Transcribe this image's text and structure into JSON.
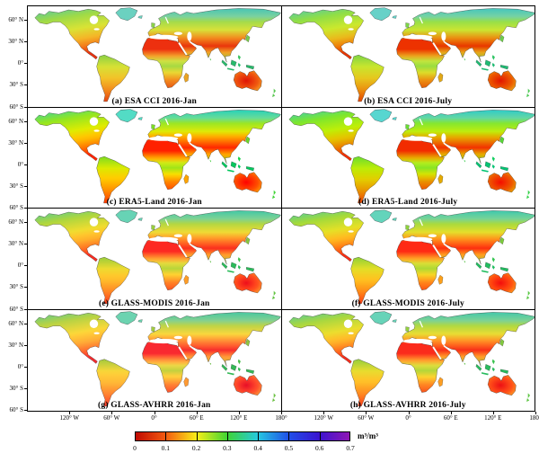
{
  "figure": {
    "panels": [
      {
        "id": "a",
        "label": "(a) ESA CCI 2016-Jan"
      },
      {
        "id": "b",
        "label": "(b) ESA CCI 2016-July"
      },
      {
        "id": "c",
        "label": "(c) ERA5-Land 2016-Jan"
      },
      {
        "id": "d",
        "label": "(d) ERA5-Land 2016-July"
      },
      {
        "id": "e",
        "label": "(e) GLASS-MODIS 2016-Jan"
      },
      {
        "id": "f",
        "label": "(f) GLASS-MODIS 2016-July"
      },
      {
        "id": "g",
        "label": "(g) GLASS-AVHRR 2016-Jan"
      },
      {
        "id": "h",
        "label": "(h) GLASS-AVHRR 2016-July"
      }
    ],
    "y_ticks": [
      "60° N",
      "30° N",
      "0°",
      "30° S",
      "60° S"
    ],
    "x_ticks": [
      "120° W",
      "60° W",
      "0°",
      "60° E",
      "120° E",
      "180°"
    ],
    "colorbar": {
      "ticks": [
        "0",
        "0.1",
        "0.2",
        "0.3",
        "0.4",
        "0.5",
        "0.6",
        "0.7"
      ],
      "unit": "m³/m³",
      "min": 0,
      "max": 0.7,
      "colors": [
        "#c00a02",
        "#f45c10",
        "#f8ef18",
        "#3ed434",
        "#26c8e0",
        "#2050e8",
        "#3a14d0",
        "#8f16b4"
      ]
    }
  },
  "chart_data": {
    "type": "heatmap",
    "title": "",
    "panels": [
      "(a) ESA CCI 2016-Jan",
      "(b) ESA CCI 2016-July",
      "(c) ERA5-Land 2016-Jan",
      "(d) ERA5-Land 2016-July",
      "(e) GLASS-MODIS 2016-Jan",
      "(f) GLASS-MODIS 2016-July",
      "(g) GLASS-AVHRR 2016-Jan",
      "(h) GLASS-AVHRR 2016-July"
    ],
    "layout": {
      "rows": 4,
      "cols": 2,
      "legend_position": "bottom-center"
    },
    "x_axis": {
      "ticks": [
        "120° W",
        "60° W",
        "0°",
        "60° E",
        "120° E",
        "180°"
      ]
    },
    "y_axis": {
      "ticks": [
        "60° N",
        "30° N",
        "0°",
        "30° S",
        "60° S"
      ]
    },
    "colorbar": {
      "range": [
        0,
        0.7
      ],
      "tick_step": 0.1,
      "unit": "m³/m³",
      "scale_colors_low_to_high": [
        "red",
        "orange",
        "yellow",
        "green",
        "cyan",
        "blue",
        "violet",
        "purple"
      ]
    }
  }
}
